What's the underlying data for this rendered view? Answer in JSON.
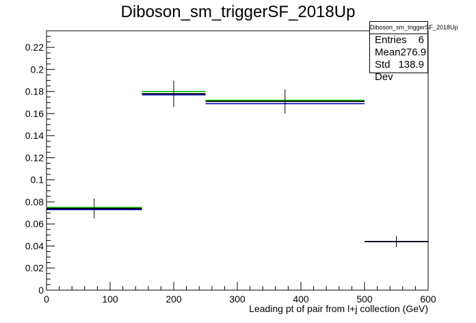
{
  "title": "Diboson_sm_triggerSF_2018Up",
  "stats": {
    "title": "Diboson_sm_triggerSF_2018Up",
    "entries_label": "Entries",
    "entries_value": "6",
    "mean_label": "Mean",
    "mean_value": "276.9",
    "stddev_label": "Std Dev",
    "stddev_value": "138.9"
  },
  "colors": {
    "nominal": "#000000",
    "green": "#00b000",
    "blue": "#0000b0"
  },
  "chart_data": {
    "type": "histogram",
    "title": "Diboson_sm_triggerSF_2018Up",
    "xlabel": "Leading pt of pair from l+j collection (GeV)",
    "ylabel": "",
    "xlim": [
      0,
      600
    ],
    "ylim": [
      0,
      0.235
    ],
    "xticks": [
      0,
      100,
      200,
      300,
      400,
      500,
      600
    ],
    "yticks": [
      0,
      0.02,
      0.04,
      0.06,
      0.08,
      0.1,
      0.12,
      0.14,
      0.16,
      0.18,
      0.2,
      0.22
    ],
    "bins": [
      {
        "x_low": 0,
        "x_high": 150,
        "center": 75,
        "value": 0.074,
        "error": 0.009
      },
      {
        "x_low": 150,
        "x_high": 250,
        "center": 200,
        "value": 0.178,
        "error": 0.012
      },
      {
        "x_low": 250,
        "x_high": 500,
        "center": 375,
        "value": 0.171,
        "error": 0.011
      },
      {
        "x_low": 500,
        "x_high": 600,
        "center": 550,
        "value": 0.044,
        "error": 0.005
      }
    ],
    "series": [
      {
        "values": [
          0.074,
          0.178,
          0.171,
          0.044
        ]
      },
      {
        "values": [
          0.075,
          0.18,
          0.172,
          0.044
        ]
      },
      {
        "values": [
          0.073,
          0.177,
          0.169,
          0.044
        ]
      }
    ]
  }
}
